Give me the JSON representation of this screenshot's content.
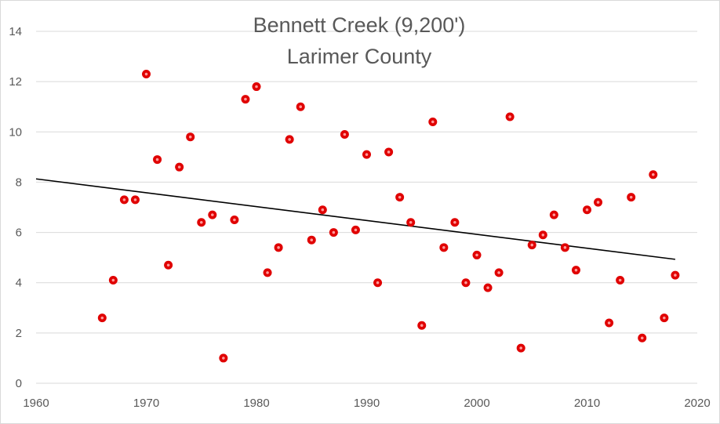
{
  "chart_data": {
    "type": "scatter",
    "title": "Bennett Creek  (9,200')",
    "subtitle": "Larimer County",
    "xlabel": "",
    "ylabel": "",
    "xlim": [
      1960,
      2020
    ],
    "ylim": [
      0,
      14
    ],
    "x_ticks": [
      1960,
      1970,
      1980,
      1990,
      2000,
      2010,
      2020
    ],
    "y_ticks": [
      0,
      2,
      4,
      6,
      8,
      10,
      12,
      14
    ],
    "grid": "horizontal",
    "legend": "none",
    "point_color": "#e00000",
    "trendline_color": "#000000",
    "series": [
      {
        "x": [
          1966,
          1967,
          1968,
          1969,
          1970,
          1971,
          1972,
          1973,
          1974,
          1975,
          1976,
          1977,
          1978,
          1979,
          1980,
          1981,
          1982,
          1983,
          1984,
          1985,
          1986,
          1987,
          1988,
          1989,
          1990,
          1991,
          1992,
          1993,
          1994,
          1995,
          1996,
          1997,
          1998,
          1999,
          2000,
          2001,
          2002,
          2003,
          2004,
          2005,
          2006,
          2007,
          2008,
          2009,
          2010,
          2011,
          2012,
          2013,
          2014,
          2015,
          2016,
          2017,
          2018
        ],
        "y": [
          2.6,
          4.1,
          7.3,
          7.3,
          12.3,
          8.9,
          4.7,
          8.6,
          9.8,
          6.4,
          6.7,
          1.0,
          6.5,
          11.3,
          11.8,
          4.4,
          5.4,
          9.7,
          11.0,
          5.7,
          6.9,
          6.0,
          9.9,
          6.1,
          9.1,
          4.0,
          9.2,
          7.4,
          6.4,
          2.3,
          10.4,
          5.4,
          6.4,
          4.0,
          5.1,
          3.8,
          4.4,
          10.6,
          1.4,
          5.5,
          5.9,
          6.7,
          5.4,
          4.5,
          6.9,
          7.2,
          2.4,
          4.1,
          7.4,
          1.8,
          8.3,
          2.6,
          4.3
        ]
      }
    ],
    "trendline": {
      "type": "linear",
      "x": [
        1960,
        2018
      ],
      "y": [
        8.13,
        4.93
      ]
    }
  }
}
